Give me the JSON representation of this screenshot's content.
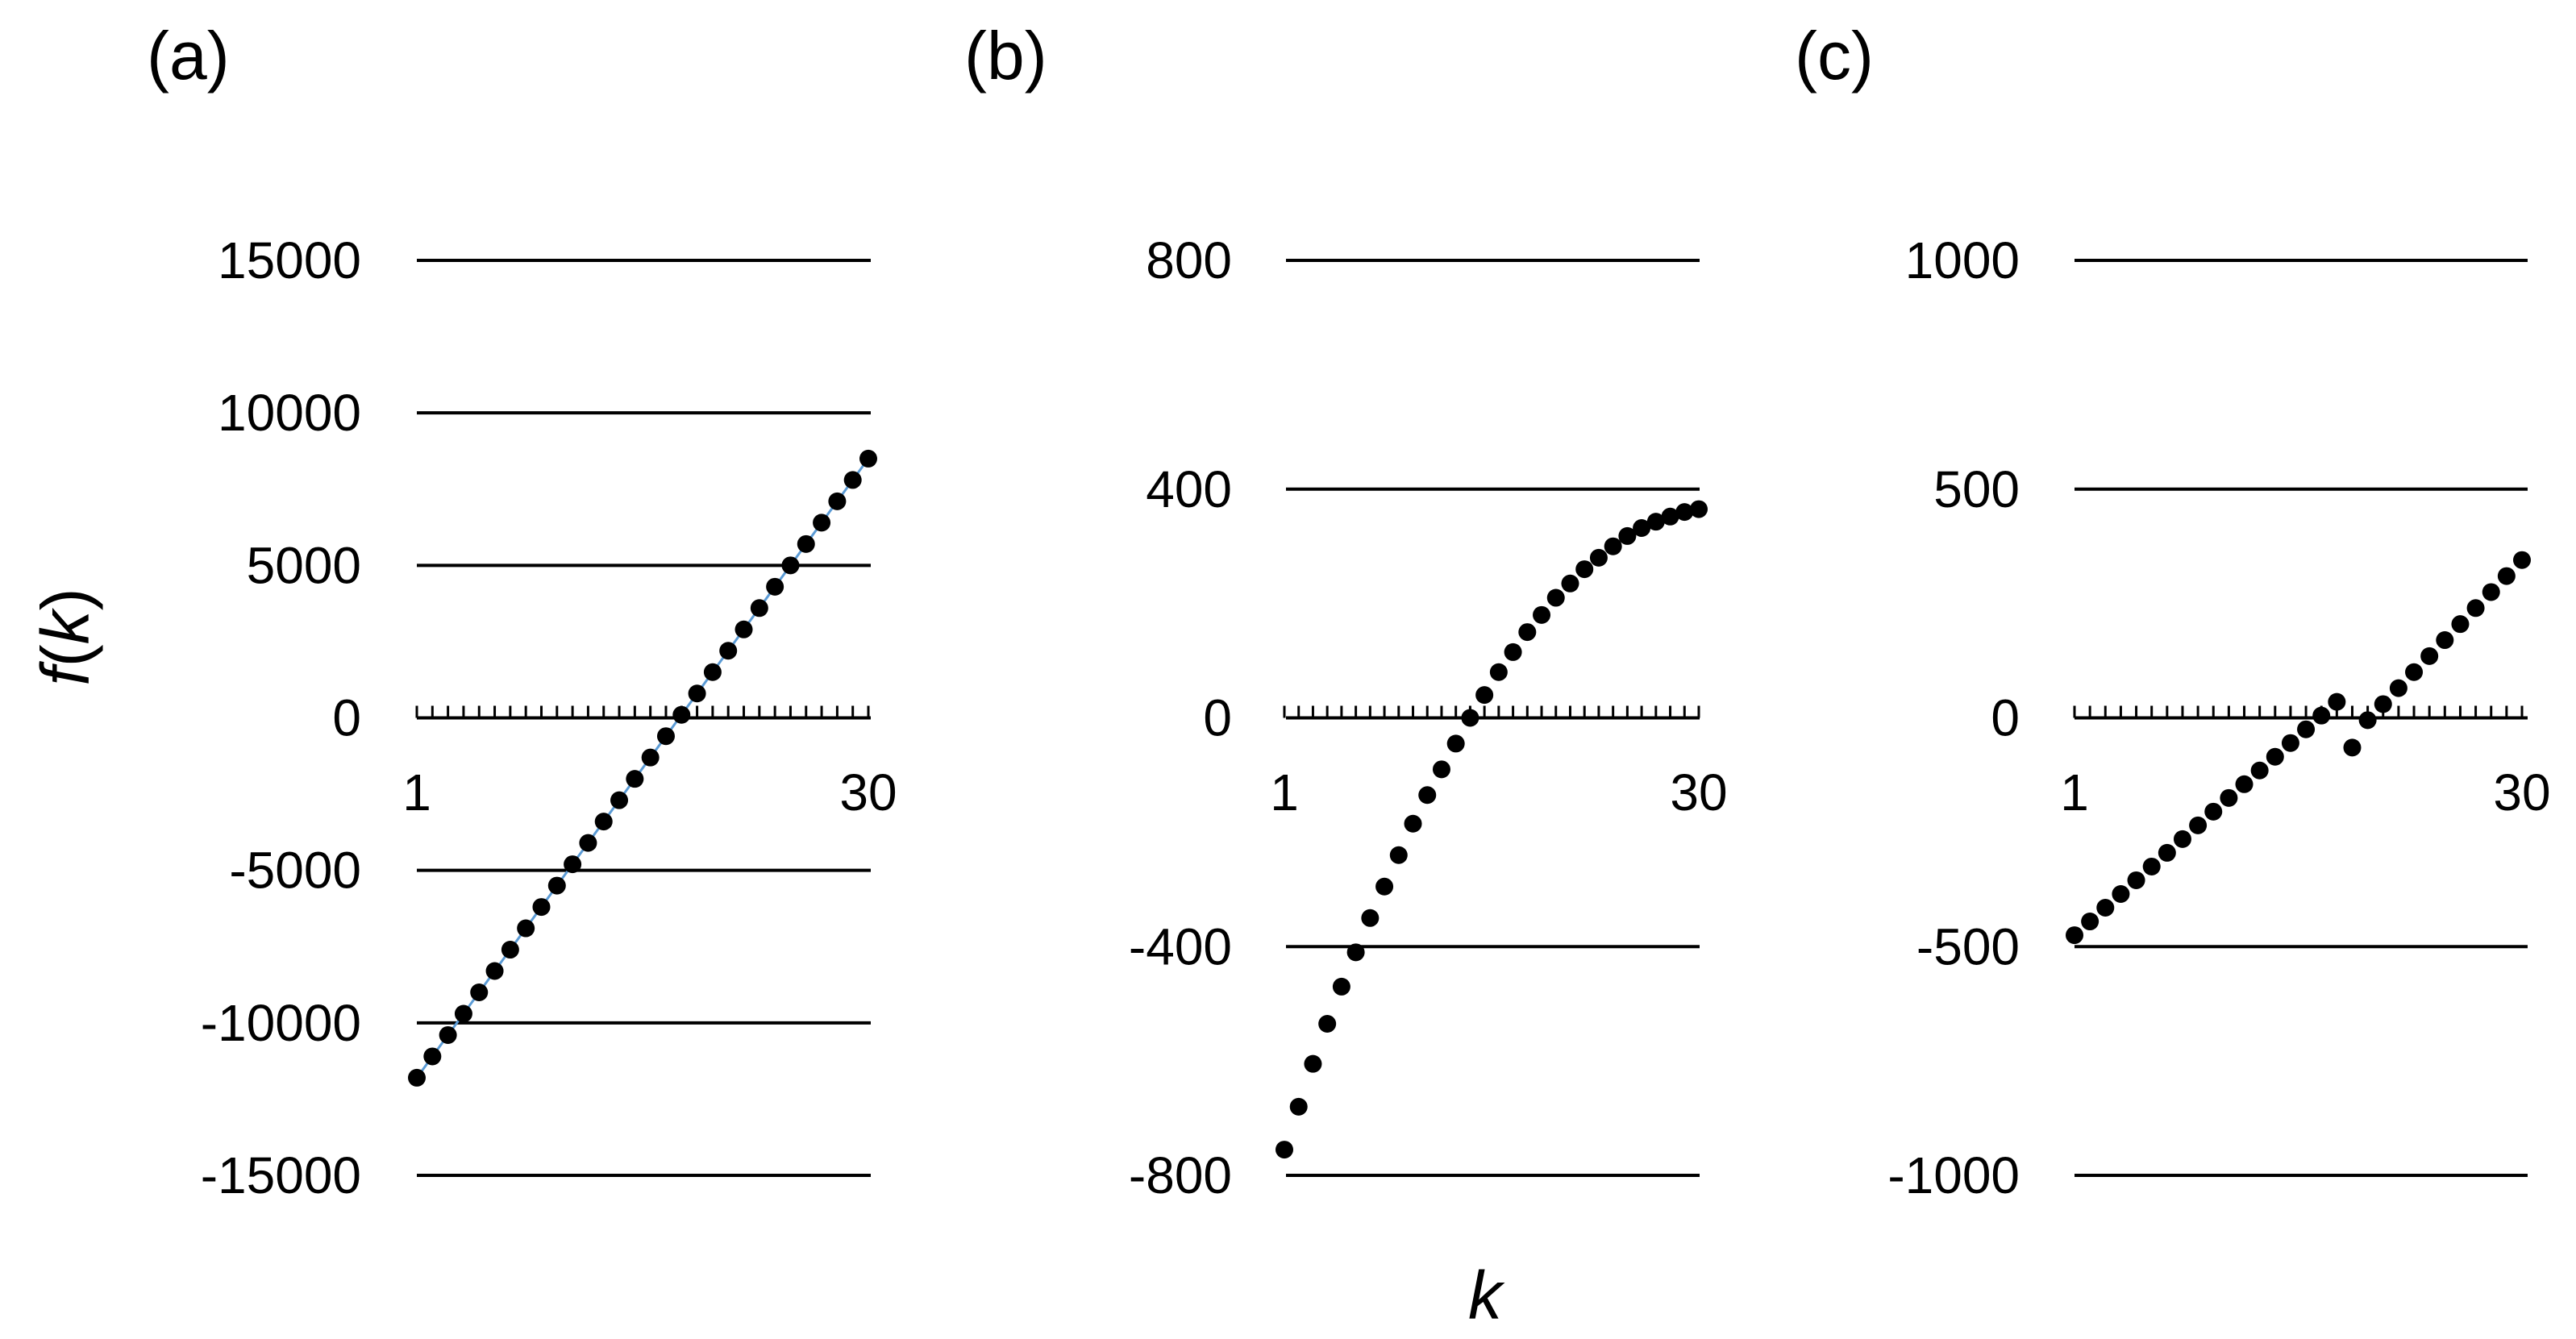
{
  "figure": {
    "ylabel": {
      "pre": "f",
      "open": "(",
      "var": "k",
      "close": ")"
    },
    "xlabel": "k"
  },
  "chart_data": [
    {
      "panel_label": "(a)",
      "type": "scatter",
      "xlabel": "",
      "ylabel": "f(k)",
      "xlim": [
        1,
        30
      ],
      "ylim": [
        -15000,
        15000
      ],
      "x_tick_labels": [
        "1",
        "30"
      ],
      "y_ticks": [
        15000,
        10000,
        5000,
        0,
        -5000,
        -10000,
        -15000
      ],
      "y_tick_labels": [
        "15000",
        "10000",
        "5000",
        "0",
        "-5000",
        "-10000",
        "-15000"
      ],
      "grid": true,
      "trend_line_color": "#5b9bd5",
      "marker_color": "#000000",
      "x": [
        1,
        2,
        3,
        4,
        5,
        6,
        7,
        8,
        9,
        10,
        11,
        12,
        13,
        14,
        15,
        16,
        17,
        18,
        19,
        20,
        21,
        22,
        23,
        24,
        25,
        26,
        27,
        28,
        29,
        30
      ],
      "y": [
        -11800,
        -11100,
        -10400,
        -9700,
        -9000,
        -8300,
        -7600,
        -6900,
        -6200,
        -5500,
        -4800,
        -4100,
        -3400,
        -2700,
        -2000,
        -1300,
        -600,
        100,
        800,
        1500,
        2200,
        2900,
        3600,
        4300,
        5000,
        5700,
        6400,
        7100,
        7800,
        8500
      ]
    },
    {
      "panel_label": "(b)",
      "type": "scatter",
      "xlabel": "k",
      "ylabel": "",
      "xlim": [
        1,
        30
      ],
      "ylim": [
        -800,
        800
      ],
      "x_tick_labels": [
        "1",
        "30"
      ],
      "y_ticks": [
        800,
        400,
        0,
        -400,
        -800
      ],
      "y_tick_labels": [
        "800",
        "400",
        "0",
        "-400",
        "-800"
      ],
      "grid": true,
      "marker_color": "#000000",
      "x": [
        1,
        2,
        3,
        4,
        5,
        6,
        7,
        8,
        9,
        10,
        11,
        12,
        13,
        14,
        15,
        16,
        17,
        18,
        19,
        20,
        21,
        22,
        23,
        24,
        25,
        26,
        27,
        28,
        29,
        30
      ],
      "y": [
        -755,
        -680,
        -605,
        -535,
        -470,
        -410,
        -350,
        -295,
        -240,
        -185,
        -135,
        -90,
        -45,
        0,
        40,
        80,
        115,
        150,
        180,
        210,
        235,
        260,
        280,
        300,
        318,
        332,
        343,
        352,
        360,
        365
      ]
    },
    {
      "panel_label": "(c)",
      "type": "scatter",
      "xlabel": "",
      "ylabel": "",
      "xlim": [
        1,
        30
      ],
      "ylim": [
        -1000,
        1000
      ],
      "x_tick_labels": [
        "1",
        "30"
      ],
      "y_ticks": [
        1000,
        500,
        0,
        -500,
        -1000
      ],
      "y_tick_labels": [
        "1000",
        "500",
        "0",
        "-500",
        "-1000"
      ],
      "grid": true,
      "marker_color": "#000000",
      "x": [
        1,
        2,
        3,
        4,
        5,
        6,
        7,
        8,
        9,
        10,
        11,
        12,
        13,
        14,
        15,
        16,
        17,
        18,
        19,
        20,
        21,
        22,
        23,
        24,
        25,
        26,
        27,
        28,
        29,
        30
      ],
      "y": [
        -475,
        -445,
        -415,
        -385,
        -355,
        -325,
        -295,
        -265,
        -235,
        -205,
        -175,
        -145,
        -115,
        -85,
        -55,
        -25,
        5,
        35,
        -65,
        -5,
        30,
        65,
        100,
        135,
        170,
        205,
        240,
        275,
        310,
        345
      ]
    }
  ]
}
